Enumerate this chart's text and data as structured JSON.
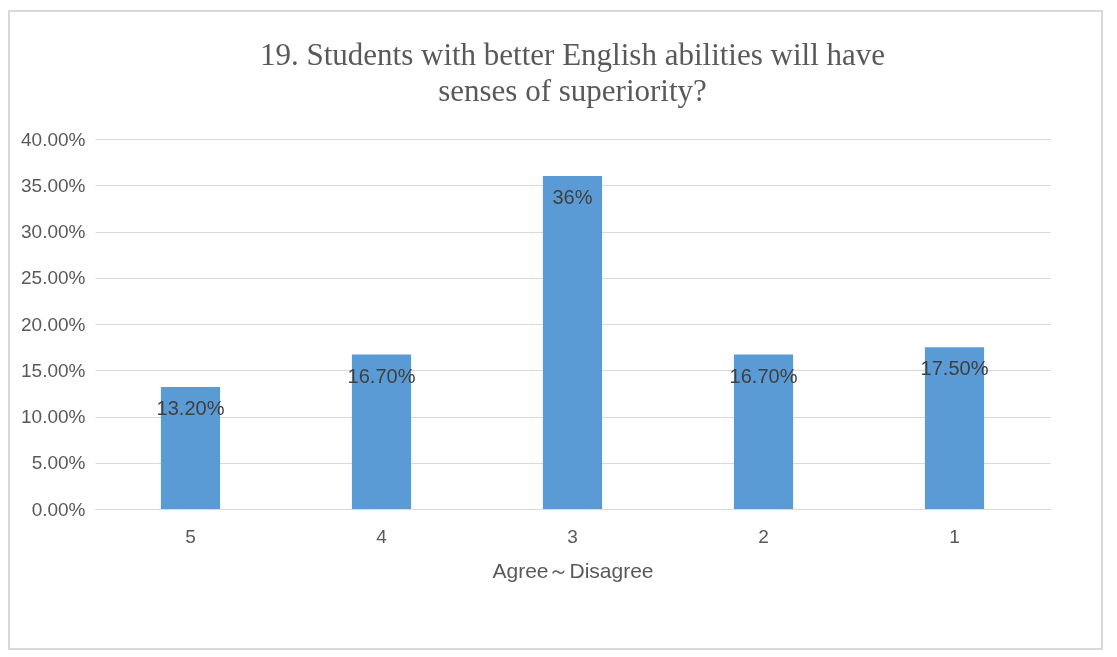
{
  "chart_data": {
    "type": "bar",
    "title": "19. Students with better English abilities  will have senses of superiority?",
    "xlabel": "Agree～Disagree",
    "categories": [
      "5",
      "4",
      "3",
      "2",
      "1"
    ],
    "values": [
      13.2,
      16.7,
      36,
      16.7,
      17.5
    ],
    "value_labels": [
      "13.20%",
      "16.70%",
      "36%",
      "16.70%",
      "17.50%"
    ],
    "color": "#5b9bd5",
    "ylim": [
      0,
      40
    ],
    "yticks": [
      {
        "value": 0,
        "label": "0.00%"
      },
      {
        "value": 5,
        "label": "5.00%"
      },
      {
        "value": 10,
        "label": "10.00%"
      },
      {
        "value": 15,
        "label": "15.00%"
      },
      {
        "value": 20,
        "label": "20.00%"
      },
      {
        "value": 25,
        "label": "25.00%"
      },
      {
        "value": 30,
        "label": "30.00%"
      },
      {
        "value": 35,
        "label": "35.00%"
      },
      {
        "value": 40,
        "label": "40.00%"
      }
    ],
    "grid": "y"
  }
}
